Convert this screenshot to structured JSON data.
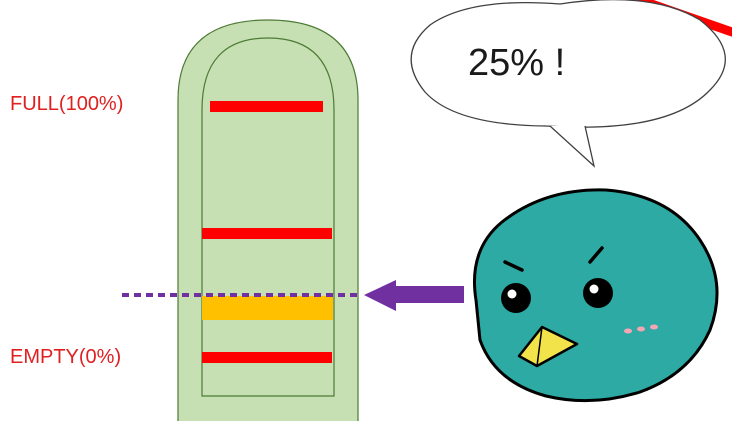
{
  "gauge": {
    "full_label": "FULL(100%)",
    "empty_label": "EMPTY(0%)",
    "level_percent": 25
  },
  "speech_bubble": {
    "text": "25% !"
  },
  "colors": {
    "tank_fill": "#c6e0b4",
    "tank_stroke": "#4d7a34",
    "marker_red": "#ff0000",
    "level_orange": "#ffc000",
    "arrow_purple": "#7030a0",
    "bird_body": "#2eaaa5",
    "bird_beak": "#f2e34a",
    "bird_cheek": "#f4a6b4",
    "label_red": "#e02020"
  },
  "icons": {
    "character": "bird-mascot-icon",
    "pointer": "arrow-left-icon"
  }
}
